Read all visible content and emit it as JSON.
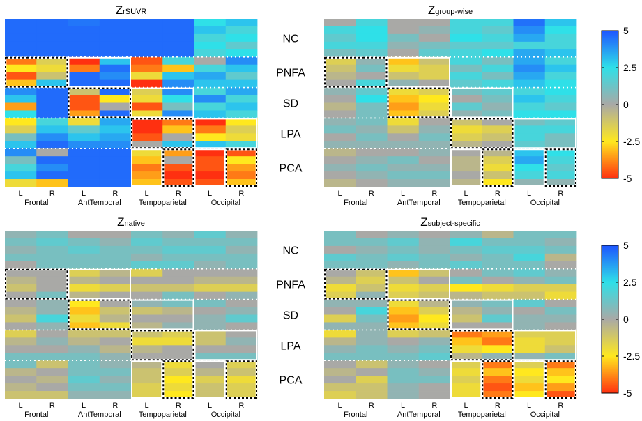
{
  "chart_data": {
    "type": "heatmap",
    "color_scale": {
      "min": -5,
      "max": 5,
      "ticks": [
        "5",
        "2.5",
        "0",
        "-2.5",
        "-5"
      ],
      "stops": [
        "#ff3010",
        "#ffe81e",
        "#a9a9a6",
        "#2fe0e8",
        "#1e55ff"
      ]
    },
    "groups": [
      "NC",
      "PNFA",
      "SD",
      "LPA",
      "PCA"
    ],
    "group_row_counts": [
      5,
      4,
      4,
      4,
      5
    ],
    "columns": [
      "L",
      "R",
      "L",
      "R",
      "L",
      "R",
      "L",
      "R"
    ],
    "regions": [
      "Frontal",
      "AntTemporal",
      "Tempoparietal",
      "Occipital"
    ],
    "panels": [
      {
        "title_main": "Z",
        "title_sub": "rSUVR",
        "values": [
          [
            4.6,
            4.6,
            4.4,
            4.6,
            4.6,
            4.6,
            2.5,
            3.0
          ],
          [
            4.6,
            4.6,
            4.6,
            4.6,
            4.6,
            4.6,
            3.0,
            2.0
          ],
          [
            4.6,
            4.6,
            4.6,
            4.6,
            4.6,
            4.6,
            2.0,
            2.5
          ],
          [
            4.6,
            4.6,
            4.6,
            4.6,
            4.6,
            4.6,
            2.5,
            1.5
          ],
          [
            4.6,
            4.6,
            4.6,
            4.6,
            4.6,
            4.6,
            2.0,
            2.5
          ],
          [
            -4.0,
            -1.5,
            -5.0,
            3.0,
            -4.5,
            2.0,
            0.0,
            4.0
          ],
          [
            -2.5,
            -2.0,
            -4.0,
            4.5,
            -4.0,
            -3.0,
            2.0,
            3.0
          ],
          [
            -4.5,
            -1.0,
            4.6,
            4.0,
            -2.0,
            3.0,
            3.5,
            1.5
          ],
          [
            -3.0,
            3.0,
            4.6,
            4.6,
            -5.0,
            4.0,
            3.0,
            3.0
          ],
          [
            4.0,
            4.6,
            -1.0,
            4.6,
            -1.5,
            4.0,
            2.0,
            3.5
          ],
          [
            3.0,
            4.6,
            -4.5,
            -2.5,
            -2.0,
            2.5,
            4.0,
            2.0
          ],
          [
            -3.5,
            4.6,
            -4.5,
            0.0,
            -4.5,
            1.0,
            2.0,
            3.0
          ],
          [
            2.5,
            4.6,
            -3.5,
            4.6,
            -2.0,
            4.0,
            3.0,
            2.0
          ],
          [
            -2.5,
            2.0,
            -2.0,
            3.5,
            -5.0,
            -4.0,
            -5.0,
            -2.5
          ],
          [
            -1.5,
            3.0,
            1.5,
            3.0,
            -5.0,
            -3.0,
            -4.0,
            -1.5
          ],
          [
            1.0,
            4.0,
            3.0,
            3.5,
            -4.5,
            0.0,
            -2.5,
            -2.0
          ],
          [
            3.0,
            4.6,
            4.0,
            4.0,
            0.0,
            3.0,
            3.0,
            2.0
          ],
          [
            4.0,
            0.0,
            4.6,
            4.6,
            -2.0,
            -3.5,
            -5.0,
            -4.5
          ],
          [
            1.0,
            4.6,
            4.6,
            4.6,
            -3.0,
            0.0,
            -4.5,
            -2.5
          ],
          [
            2.0,
            4.0,
            4.6,
            4.6,
            -4.0,
            -4.5,
            -4.5,
            -3.5
          ],
          [
            3.0,
            4.6,
            4.6,
            4.6,
            -3.5,
            -5.0,
            -5.0,
            -4.0
          ],
          [
            -2.0,
            -3.0,
            4.6,
            4.6,
            -3.0,
            -4.5,
            -4.5,
            -3.0
          ]
        ]
      },
      {
        "title_main": "Z",
        "title_sub": "group-wise",
        "values": [
          [
            0.0,
            2.0,
            0.0,
            0.0,
            2.0,
            2.0,
            4.5,
            3.0
          ],
          [
            2.0,
            2.5,
            0.0,
            0.5,
            2.0,
            1.5,
            4.0,
            2.5
          ],
          [
            1.5,
            2.5,
            1.0,
            0.0,
            2.5,
            2.0,
            3.5,
            2.0
          ],
          [
            2.0,
            2.0,
            0.5,
            1.0,
            1.5,
            1.5,
            2.0,
            2.0
          ],
          [
            1.0,
            1.5,
            0.0,
            1.5,
            2.0,
            2.5,
            3.5,
            3.0
          ],
          [
            -1.5,
            0.5,
            -3.0,
            -1.0,
            2.0,
            1.0,
            3.5,
            2.0
          ],
          [
            -1.0,
            1.0,
            -2.0,
            -1.5,
            1.0,
            2.0,
            4.0,
            3.0
          ],
          [
            -0.5,
            0.0,
            -1.0,
            -1.5,
            2.0,
            1.0,
            3.5,
            2.0
          ],
          [
            0.0,
            2.0,
            0.5,
            0.0,
            1.5,
            2.0,
            3.0,
            2.5
          ],
          [
            0.5,
            1.5,
            -2.0,
            -1.5,
            1.0,
            1.5,
            2.0,
            2.5
          ],
          [
            0.0,
            2.5,
            -3.0,
            -2.5,
            0.0,
            1.0,
            3.0,
            2.0
          ],
          [
            -0.5,
            1.0,
            -3.5,
            -2.0,
            1.5,
            0.5,
            2.0,
            1.5
          ],
          [
            0.0,
            1.0,
            -3.0,
            -1.5,
            0.5,
            1.0,
            2.5,
            2.5
          ],
          [
            0.5,
            1.0,
            -2.0,
            0.0,
            -1.0,
            0.0,
            1.0,
            1.5
          ],
          [
            1.0,
            0.5,
            -1.0,
            0.5,
            -2.0,
            -1.5,
            2.0,
            2.0
          ],
          [
            0.0,
            1.0,
            0.0,
            1.0,
            -1.5,
            -1.0,
            2.0,
            1.0
          ],
          [
            0.5,
            0.5,
            0.5,
            0.5,
            -0.5,
            0.0,
            1.5,
            1.0
          ],
          [
            -0.5,
            0.0,
            0.0,
            0.5,
            0.0,
            -0.5,
            3.0,
            2.5
          ],
          [
            0.0,
            0.5,
            1.0,
            0.0,
            -0.5,
            -1.5,
            3.5,
            2.0
          ],
          [
            0.5,
            1.0,
            0.5,
            0.5,
            -0.5,
            -2.0,
            2.5,
            1.5
          ],
          [
            0.0,
            0.5,
            1.0,
            1.0,
            0.0,
            -1.0,
            2.0,
            2.0
          ],
          [
            -0.5,
            0.0,
            0.5,
            0.5,
            -0.5,
            -2.5,
            0.5,
            0.5
          ]
        ]
      },
      {
        "title_main": "Z",
        "title_sub": "native",
        "values": [
          [
            0.5,
            1.0,
            0.0,
            0.0,
            1.0,
            0.5,
            1.5,
            0.5
          ],
          [
            1.0,
            1.5,
            1.0,
            0.5,
            1.5,
            1.0,
            1.0,
            1.0
          ],
          [
            0.5,
            1.0,
            1.5,
            1.0,
            1.0,
            1.5,
            1.5,
            0.5
          ],
          [
            1.0,
            1.0,
            1.0,
            1.0,
            0.5,
            1.0,
            1.0,
            1.0
          ],
          [
            0.0,
            1.0,
            1.0,
            1.0,
            1.5,
            1.5,
            0.5,
            1.0
          ],
          [
            0.0,
            0.0,
            -1.5,
            -0.5,
            -1.5,
            0.0,
            0.0,
            0.0
          ],
          [
            -0.5,
            0.0,
            -0.5,
            0.0,
            0.0,
            0.0,
            -0.5,
            -0.5
          ],
          [
            -1.0,
            0.0,
            -2.0,
            -1.5,
            -1.0,
            -1.0,
            -1.5,
            -1.5
          ],
          [
            0.0,
            1.0,
            -0.5,
            0.0,
            0.0,
            1.0,
            0.0,
            0.5
          ],
          [
            0.0,
            0.5,
            -2.5,
            0.0,
            0.5,
            1.0,
            1.0,
            0.0
          ],
          [
            -0.5,
            0.5,
            -3.0,
            -1.0,
            -1.0,
            -0.5,
            0.0,
            0.5
          ],
          [
            -1.0,
            2.0,
            -2.0,
            -0.5,
            0.0,
            0.0,
            0.5,
            1.5
          ],
          [
            0.0,
            0.5,
            -3.0,
            -2.0,
            -0.5,
            0.5,
            0.5,
            0.0
          ],
          [
            -1.5,
            0.0,
            -1.0,
            -1.0,
            -1.0,
            -1.5,
            -1.0,
            0.0
          ],
          [
            -0.5,
            0.5,
            -0.5,
            0.0,
            -2.0,
            -2.0,
            -1.0,
            0.5
          ],
          [
            0.0,
            0.0,
            0.5,
            -0.5,
            -0.5,
            0.0,
            0.0,
            0.0
          ],
          [
            1.0,
            1.0,
            1.0,
            0.5,
            0.0,
            0.0,
            1.0,
            1.0
          ],
          [
            1.0,
            -1.0,
            1.0,
            0.5,
            -0.5,
            -2.0,
            0.0,
            -1.5
          ],
          [
            -0.5,
            0.0,
            1.0,
            1.0,
            -1.0,
            -1.5,
            -0.5,
            -1.0
          ],
          [
            0.0,
            -0.5,
            1.5,
            0.5,
            -1.0,
            -2.5,
            -1.5,
            -2.0
          ],
          [
            -0.5,
            0.0,
            1.0,
            1.0,
            -1.5,
            -2.0,
            -1.0,
            -1.5
          ],
          [
            -1.0,
            -1.0,
            0.5,
            0.5,
            -1.5,
            -2.5,
            -1.0,
            -1.5
          ]
        ]
      },
      {
        "title_main": "Z",
        "title_sub": "subject-specific",
        "values": [
          [
            1.0,
            0.0,
            0.5,
            0.0,
            0.5,
            -0.5,
            1.0,
            1.0
          ],
          [
            1.0,
            1.0,
            1.5,
            0.5,
            2.0,
            1.0,
            1.0,
            0.5
          ],
          [
            0.0,
            0.5,
            1.0,
            0.5,
            1.0,
            1.5,
            1.5,
            1.0
          ],
          [
            1.5,
            1.0,
            1.5,
            1.0,
            0.5,
            1.0,
            2.0,
            -0.5
          ],
          [
            1.0,
            1.0,
            0.5,
            1.0,
            1.5,
            1.0,
            1.0,
            0.0
          ],
          [
            0.0,
            -1.0,
            -3.0,
            -1.0,
            0.0,
            1.0,
            1.5,
            0.5
          ],
          [
            -0.5,
            -1.5,
            -1.0,
            0.0,
            1.0,
            0.0,
            0.5,
            1.0
          ],
          [
            -2.0,
            -1.0,
            -2.0,
            -1.5,
            -2.5,
            -2.0,
            -1.5,
            -1.5
          ],
          [
            -1.5,
            0.5,
            -1.5,
            -1.0,
            -0.5,
            -1.0,
            -1.0,
            -2.0
          ],
          [
            0.5,
            0.5,
            -2.0,
            -0.5,
            0.5,
            1.0,
            1.5,
            0.0
          ],
          [
            0.0,
            2.0,
            -3.0,
            -1.5,
            -0.5,
            0.5,
            0.0,
            1.0
          ],
          [
            -1.5,
            1.0,
            -3.5,
            -2.5,
            -1.0,
            1.5,
            0.5,
            0.5
          ],
          [
            0.5,
            0.5,
            -3.0,
            -2.0,
            0.0,
            0.0,
            0.5,
            0.0
          ],
          [
            -2.0,
            0.5,
            -1.5,
            -1.0,
            -4.0,
            -3.5,
            -1.5,
            -1.5
          ],
          [
            -0.5,
            0.5,
            0.0,
            0.5,
            -3.0,
            -4.0,
            -2.0,
            -1.5
          ],
          [
            0.5,
            1.0,
            0.5,
            1.0,
            -2.0,
            -2.5,
            -2.0,
            -1.0
          ],
          [
            1.0,
            1.0,
            1.0,
            1.5,
            -0.5,
            0.5,
            0.5,
            1.0
          ],
          [
            0.0,
            -1.0,
            0.5,
            0.0,
            -1.5,
            -4.0,
            -1.5,
            -4.0
          ],
          [
            -0.5,
            0.0,
            1.0,
            0.5,
            -2.0,
            -3.0,
            -2.5,
            -3.0
          ],
          [
            0.0,
            -1.5,
            1.0,
            1.0,
            -1.5,
            -4.0,
            -2.0,
            -2.5
          ],
          [
            -1.0,
            -1.0,
            0.5,
            0.0,
            -2.0,
            -4.5,
            -3.0,
            -3.5
          ],
          [
            -1.5,
            -1.0,
            0.5,
            0.0,
            -2.0,
            -4.0,
            -2.5,
            -4.5
          ]
        ]
      }
    ]
  }
}
